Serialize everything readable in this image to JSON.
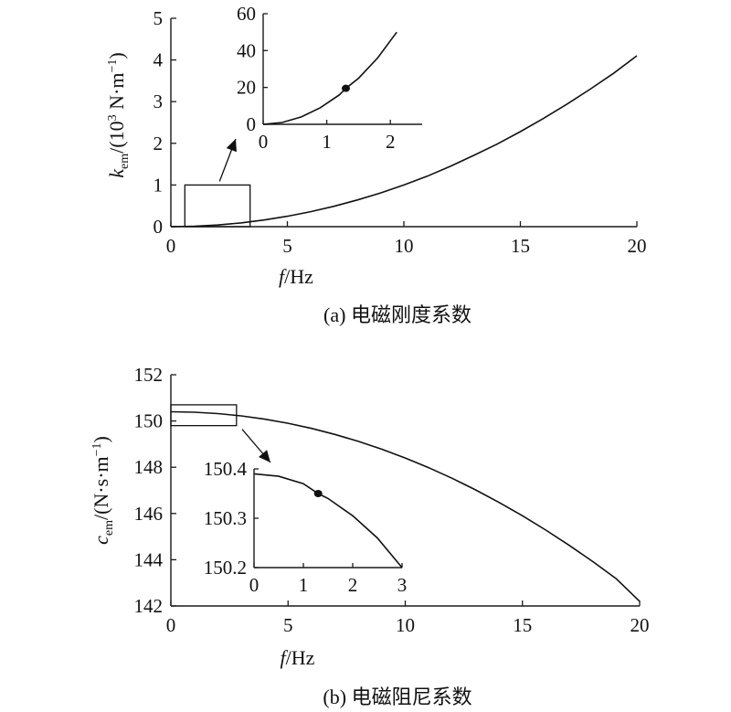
{
  "chart_data": [
    {
      "id": "a",
      "type": "line",
      "caption": "(a) 电磁刚度系数",
      "xlabel": "f/Hz",
      "ylabel": "k_em/(10^3 N·m^-1)",
      "xlim": [
        0,
        20
      ],
      "ylim": [
        0,
        5
      ],
      "xticks": [
        0,
        5,
        10,
        15,
        20
      ],
      "yticks": [
        0,
        1,
        2,
        3,
        4,
        5
      ],
      "series": [
        {
          "x": [
            0,
            1,
            2,
            3,
            4,
            5,
            6,
            7,
            8,
            9,
            10,
            11,
            12,
            13,
            14,
            15,
            16,
            17,
            18,
            19,
            20
          ],
          "values": [
            0,
            0.01,
            0.04,
            0.09,
            0.16,
            0.25,
            0.36,
            0.49,
            0.64,
            0.81,
            1.0,
            1.21,
            1.45,
            1.71,
            1.98,
            2.28,
            2.6,
            2.94,
            3.3,
            3.68,
            4.1
          ]
        }
      ],
      "zoom_box": {
        "xlim": [
          0.6,
          3.4
        ],
        "ylim": [
          0,
          1
        ]
      },
      "inset": {
        "xlim": [
          0,
          2.5
        ],
        "ylim": [
          0,
          60
        ],
        "xticks": [
          0,
          1,
          2
        ],
        "yticks": [
          0,
          20,
          40,
          60
        ],
        "x": [
          0,
          0.3,
          0.6,
          0.9,
          1.2,
          1.3,
          1.5,
          1.8,
          2.1
        ],
        "values": [
          0,
          1,
          4,
          9,
          16,
          19.5,
          25,
          36,
          50
        ],
        "marker": {
          "x": 1.3,
          "y": 19.5
        }
      }
    },
    {
      "id": "b",
      "type": "line",
      "caption": "(b) 电磁阻尼系数",
      "xlabel": "f/Hz",
      "ylabel": "c_em/(N·s·m^-1)",
      "xlim": [
        0,
        20
      ],
      "ylim": [
        142,
        152
      ],
      "xticks": [
        0,
        5,
        10,
        15,
        20
      ],
      "yticks": [
        142,
        144,
        146,
        148,
        150,
        152
      ],
      "series": [
        {
          "x": [
            0,
            1,
            2,
            3,
            4,
            5,
            6,
            7,
            8,
            9,
            10,
            11,
            12,
            13,
            14,
            15,
            16,
            17,
            18,
            19,
            20
          ],
          "values": [
            150.4,
            150.38,
            150.32,
            150.22,
            150.08,
            149.9,
            149.68,
            149.42,
            149.12,
            148.78,
            148.4,
            147.98,
            147.52,
            147.02,
            146.48,
            145.9,
            145.28,
            144.62,
            143.92,
            143.18,
            142.2
          ]
        }
      ],
      "zoom_box": {
        "xlim": [
          0,
          2.8
        ],
        "ylim": [
          149.8,
          150.7
        ]
      },
      "inset": {
        "xlim": [
          0,
          3
        ],
        "ylim": [
          150.2,
          150.4
        ],
        "xticks": [
          0,
          1,
          2,
          3
        ],
        "yticks": [
          150.2,
          150.3,
          150.4
        ],
        "x": [
          0,
          0.5,
          1.0,
          1.3,
          1.5,
          2.0,
          2.5,
          3.0
        ],
        "values": [
          150.39,
          150.385,
          150.37,
          150.35,
          150.34,
          150.305,
          150.26,
          150.2
        ],
        "marker": {
          "x": 1.3,
          "y": 150.35
        }
      }
    }
  ]
}
